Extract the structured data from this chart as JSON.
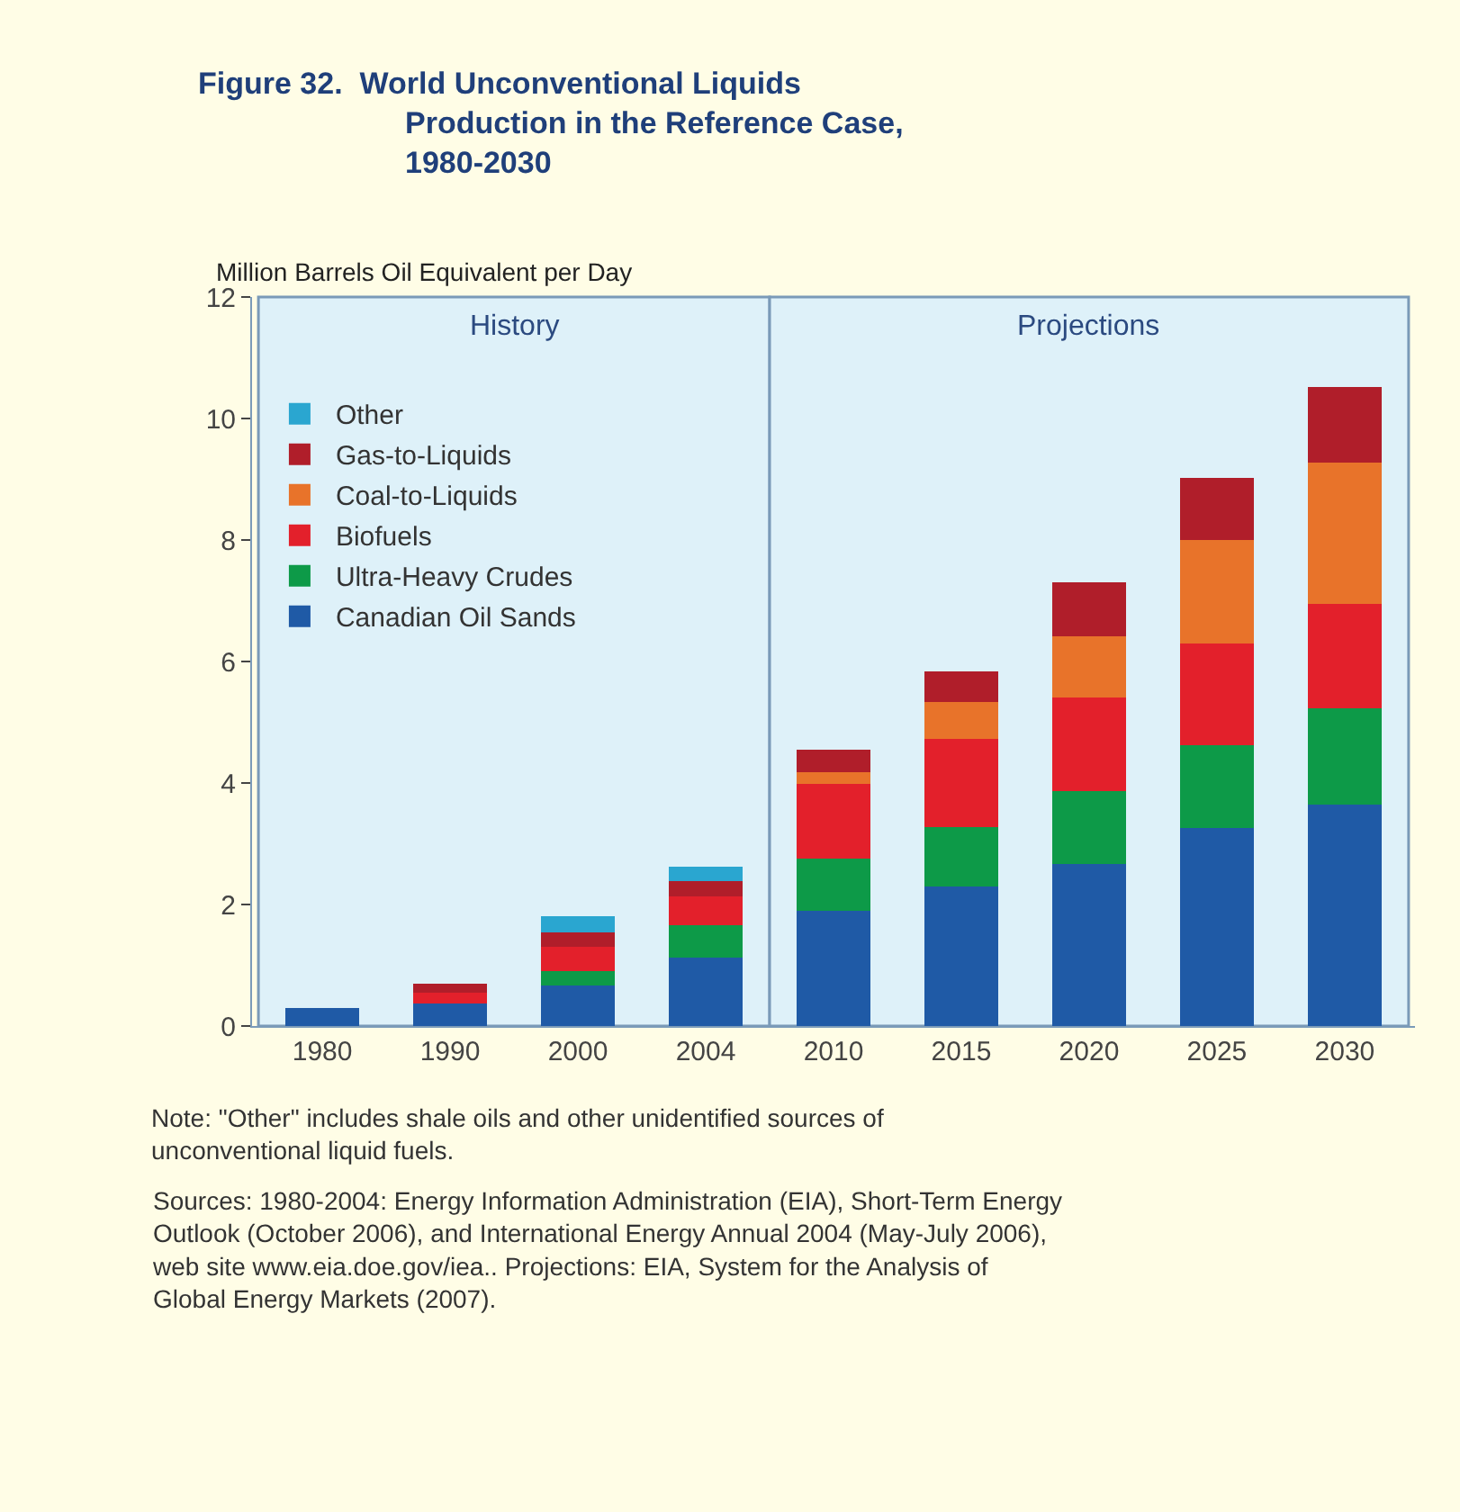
{
  "chart_data": {
    "type": "bar",
    "stacked": true,
    "title": "Figure 32.  World Unconventional Liquids Production in the Reference Case, 1980-2030",
    "ylabel": "Million Barrels Oil Equivalent per Day",
    "categories": [
      "1980",
      "1990",
      "2000",
      "2004",
      "2010",
      "2015",
      "2020",
      "2025",
      "2030"
    ],
    "series": [
      {
        "name": "Canadian Oil Sands",
        "color": "#1f5aa6",
        "values": [
          0.3,
          0.37,
          0.66,
          1.12,
          1.89,
          2.3,
          2.67,
          3.26,
          3.65
        ]
      },
      {
        "name": "Ultra-Heavy Crudes",
        "color": "#0d9a48",
        "values": [
          0,
          0,
          0.25,
          0.54,
          0.86,
          0.97,
          1.19,
          1.36,
          1.58
        ]
      },
      {
        "name": "Biofuels",
        "color": "#e3202b",
        "values": [
          0,
          0.18,
          0.39,
          0.47,
          1.24,
          1.45,
          1.55,
          1.68,
          1.72
        ]
      },
      {
        "name": "Coal-to-Liquids",
        "color": "#e8732a",
        "values": [
          0,
          0,
          0,
          0,
          0.19,
          0.61,
          1.0,
          1.7,
          2.32
        ]
      },
      {
        "name": "Gas-to-Liquids",
        "color": "#b01e2a",
        "values": [
          0,
          0.14,
          0.24,
          0.26,
          0.37,
          0.5,
          0.9,
          1.02,
          1.25
        ]
      },
      {
        "name": "Other",
        "color": "#2aa6d0",
        "values": [
          0,
          0,
          0.27,
          0.23,
          0,
          0,
          0,
          0,
          0
        ]
      }
    ],
    "ylim": [
      0,
      12
    ],
    "yticks": [
      0,
      2,
      4,
      6,
      8,
      10,
      12
    ],
    "grid": false,
    "legend": "top left",
    "bands": [
      {
        "axis": "x",
        "from": "1980",
        "to": "2004",
        "label": "History",
        "color": "#def1f9"
      },
      {
        "axis": "x",
        "from": "2010",
        "to": "2030",
        "label": "Projections",
        "color": "#def1f9"
      }
    ],
    "annotations": [
      "Note: \"Other\" includes shale oils and other unidentified sources of unconventional liquid fuels.",
      "Sources: 1980-2004: Energy Information Administration (EIA), Short-Term Energy Outlook (October 2006), and International Energy Annual 2004 (May-July 2006), web site www.eia.doe.gov/iea.. Projections: EIA, System for the Analysis of Global Energy Markets (2007)."
    ]
  }
}
